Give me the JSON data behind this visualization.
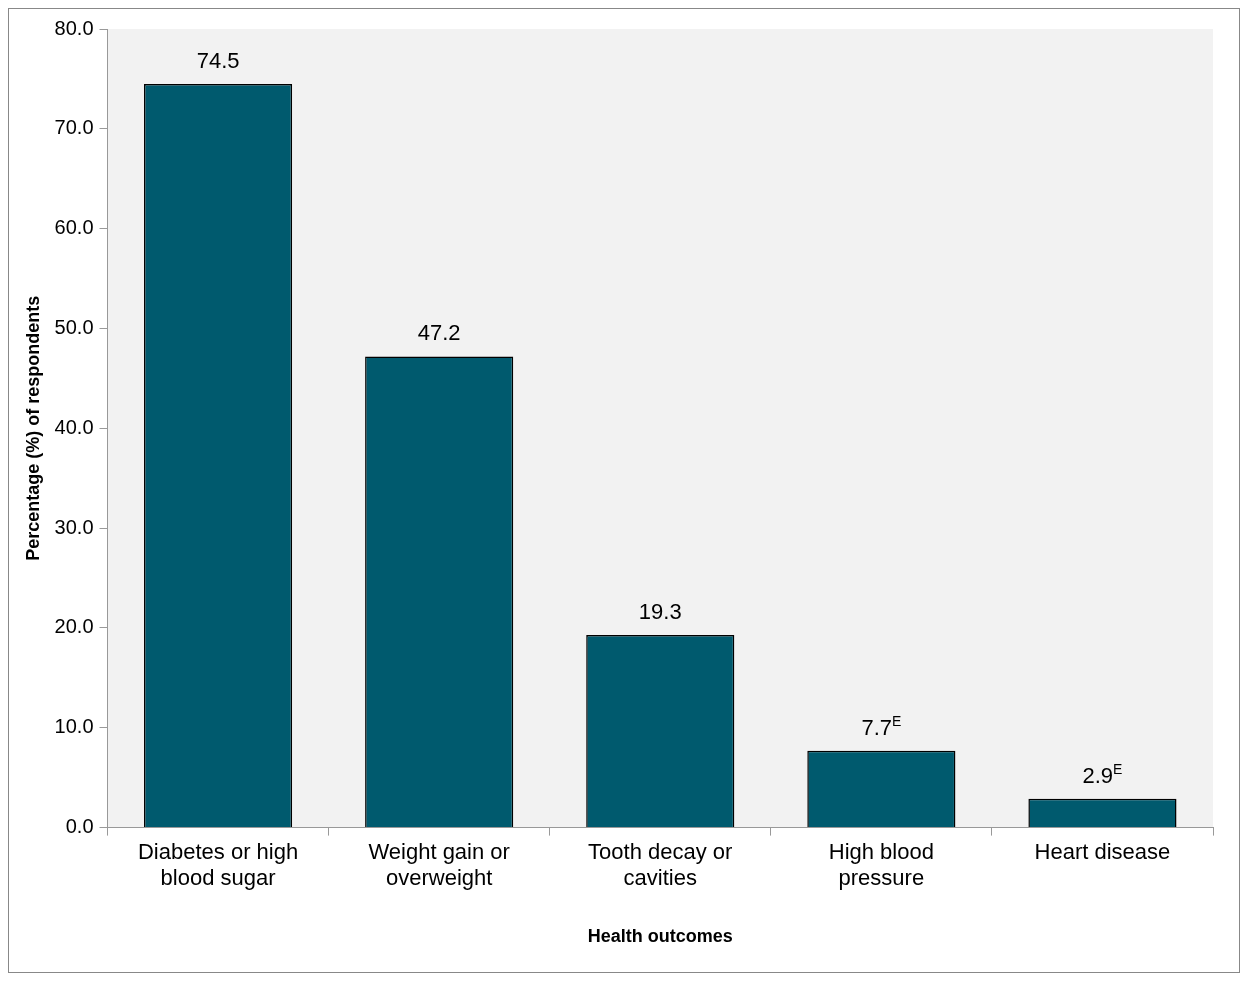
{
  "chart_data": {
    "type": "bar",
    "xlabel": "Health outcomes",
    "ylabel": "Percentage (%) of respondents",
    "categories": [
      "Diabetes or high blood sugar",
      "Weight gain or overweight",
      "Tooth decay or cavities",
      "High blood pressure",
      "Heart disease"
    ],
    "values": [
      74.5,
      47.2,
      19.3,
      7.7,
      2.9
    ],
    "value_labels": [
      "74.5",
      "47.2",
      "19.3",
      "7.7$^{E}$",
      "2.9$^{E}$"
    ],
    "color": "#005a6e",
    "ylim": [
      0,
      80
    ],
    "yticks": [
      {
        "value": 0,
        "label": "0.0"
      },
      {
        "value": 10,
        "label": "10.0"
      },
      {
        "value": 20,
        "label": "20.0"
      },
      {
        "value": 30,
        "label": "30.0"
      },
      {
        "value": 40,
        "label": "40.0"
      },
      {
        "value": 50,
        "label": "50.0"
      },
      {
        "value": 60,
        "label": "60.0"
      },
      {
        "value": 70,
        "label": "70.0"
      },
      {
        "value": 80,
        "label": "80.0"
      }
    ],
    "grid": false,
    "legend": false
  }
}
